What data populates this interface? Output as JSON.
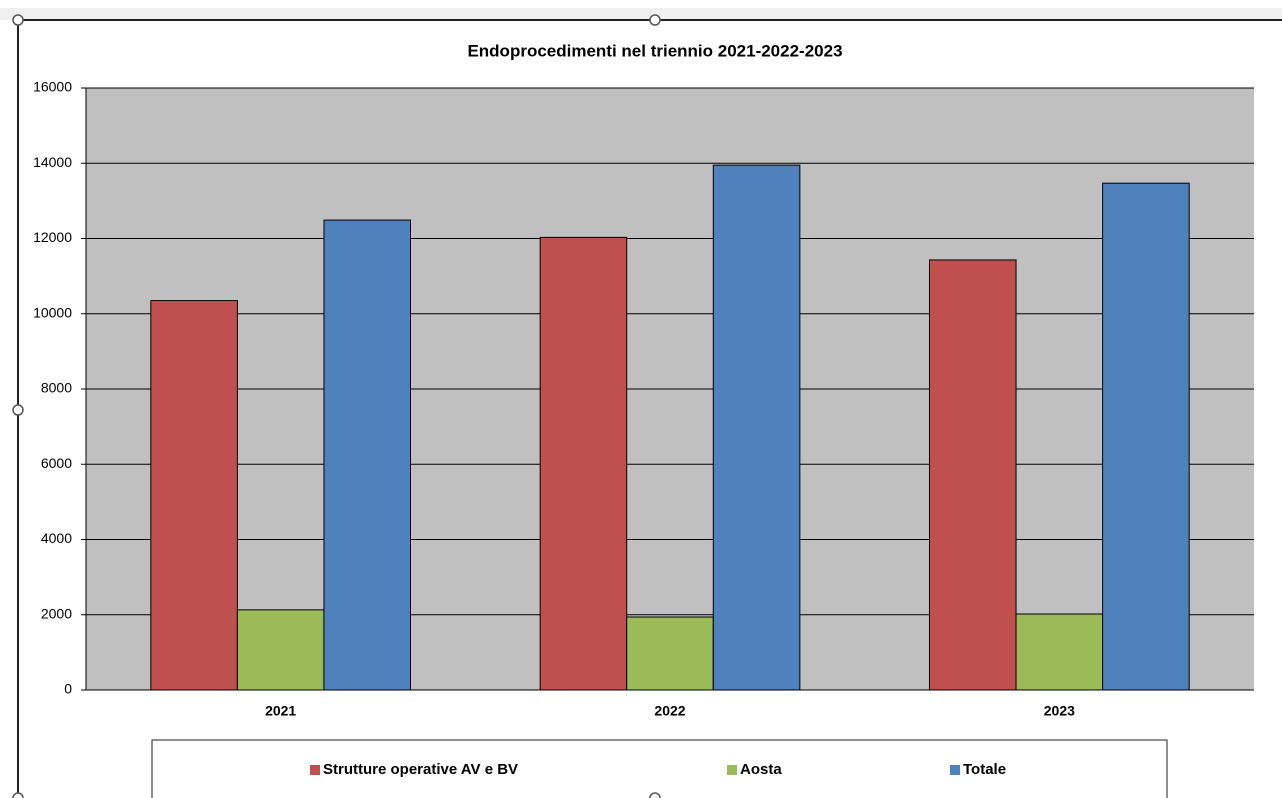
{
  "chart_data": {
    "type": "bar",
    "title": "Endoprocedimenti nel triennio 2021-2022-2023",
    "categories": [
      "2021",
      "2022",
      "2023"
    ],
    "series": [
      {
        "name": "Strutture operative AV e BV",
        "color": "#c0504d",
        "values": [
          10350,
          12030,
          11430
        ]
      },
      {
        "name": "Aosta",
        "color": "#9bbb59",
        "values": [
          2130,
          1940,
          2020
        ]
      },
      {
        "name": "Totale",
        "color": "#4f81bd",
        "values": [
          12490,
          13950,
          13470
        ]
      }
    ],
    "ylim": [
      0,
      16000
    ],
    "yticks": [
      0,
      2000,
      4000,
      6000,
      8000,
      10000,
      12000,
      14000,
      16000
    ],
    "grid": true,
    "legend": "bottom",
    "plot_background": "#c0c0c0"
  }
}
